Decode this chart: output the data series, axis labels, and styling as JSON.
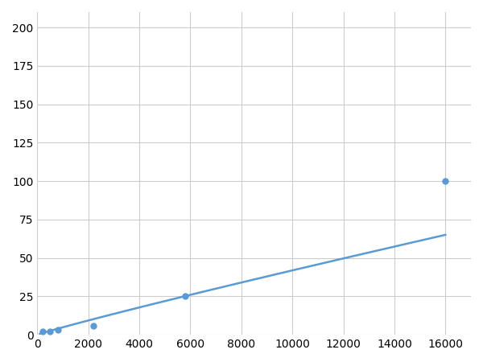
{
  "x": [
    200,
    500,
    800,
    2200,
    5800,
    16000
  ],
  "y": [
    2,
    2,
    3,
    6,
    25,
    100
  ],
  "line_color": "#5b9bd5",
  "marker_color": "#5b9bd5",
  "marker_size": 5,
  "line_width": 1.8,
  "xlim": [
    0,
    17000
  ],
  "ylim": [
    0,
    210
  ],
  "xticks": [
    0,
    2000,
    4000,
    6000,
    8000,
    10000,
    12000,
    14000,
    16000
  ],
  "yticks": [
    0,
    25,
    50,
    75,
    100,
    125,
    150,
    175,
    200
  ],
  "grid_color": "#cccccc",
  "background_color": "#ffffff",
  "tick_fontsize": 10
}
